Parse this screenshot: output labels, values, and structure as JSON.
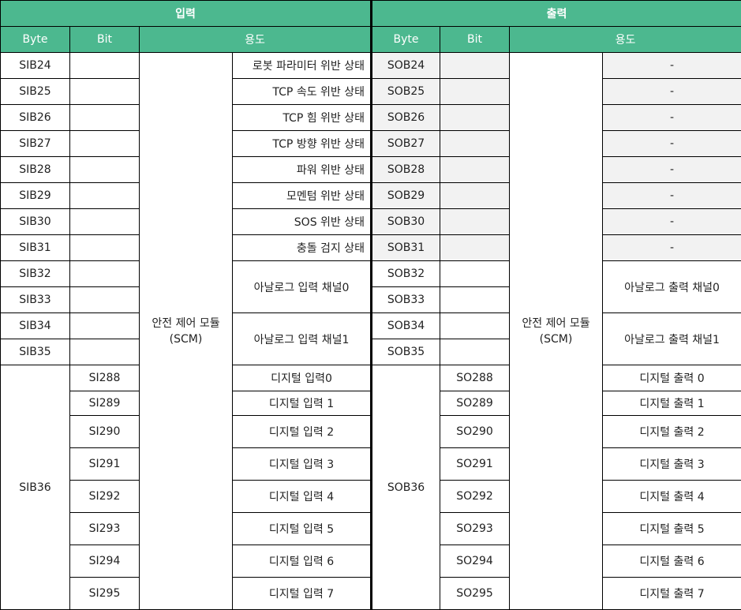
{
  "colors": {
    "header_bg": "#4cb88f",
    "header_text": "#ffffff",
    "shaded_cell": "#f2f2f2",
    "grid": "#000000"
  },
  "header": {
    "input_title": "입력",
    "output_title": "출력",
    "col_byte": "Byte",
    "col_bit": "Bit",
    "col_purpose": "용도"
  },
  "input": {
    "group_label_line1": "안전 제어 모듈",
    "group_label_line2": "(SCM)",
    "bytes": [
      "SIB24",
      "SIB25",
      "SIB26",
      "SIB27",
      "SIB28",
      "SIB29",
      "SIB30",
      "SIB31",
      "SIB32",
      "SIB33",
      "SIB34",
      "SIB35"
    ],
    "purposes": [
      "로봇 파라미터 위반 상태",
      "TCP 속도 위반 상태",
      "TCP 힘 위반 상태",
      "TCP 방향 위반 상태",
      "파워 위반 상태",
      "모멘텀 위반 상태",
      "SOS 위반 상태",
      "충돌 검지 상태"
    ],
    "analog0": "아날로그 입력 채널0",
    "analog1": "아날로그 입력 채널1",
    "digital_byte": "SIB36",
    "bits": [
      "SI288",
      "SI289",
      "SI290",
      "SI291",
      "SI292",
      "SI293",
      "SI294",
      "SI295"
    ],
    "digital": [
      "디지털 입력0",
      "디지털 입력 1",
      "디지털 입력 2",
      "디지털 입력 3",
      "디지털 입력 4",
      "디지털 입력 5",
      "디지털 입력 6",
      "디지털 입력 7"
    ]
  },
  "output": {
    "group_label_line1": "안전 제어 모듈",
    "group_label_line2": "(SCM)",
    "bytes": [
      "SOB24",
      "SOB25",
      "SOB26",
      "SOB27",
      "SOB28",
      "SOB29",
      "SOB30",
      "SOB31",
      "SOB32",
      "SOB33",
      "SOB34",
      "SOB35"
    ],
    "dash": "-",
    "analog0": "아날로그 출력 채널0",
    "analog1": "아날로그 출력 채널1",
    "digital_byte": "SOB36",
    "bits": [
      "SO288",
      "SO289",
      "SO290",
      "SO291",
      "SO292",
      "SO293",
      "SO294",
      "SO295"
    ],
    "digital": [
      "디지털 출력 0",
      "디지털 출력 1",
      "디지털 출력 2",
      "디지털 출력 3",
      "디지털 출력 4",
      "디지털 출력 5",
      "디지털 출력 6",
      "디지털 출력 7"
    ]
  }
}
